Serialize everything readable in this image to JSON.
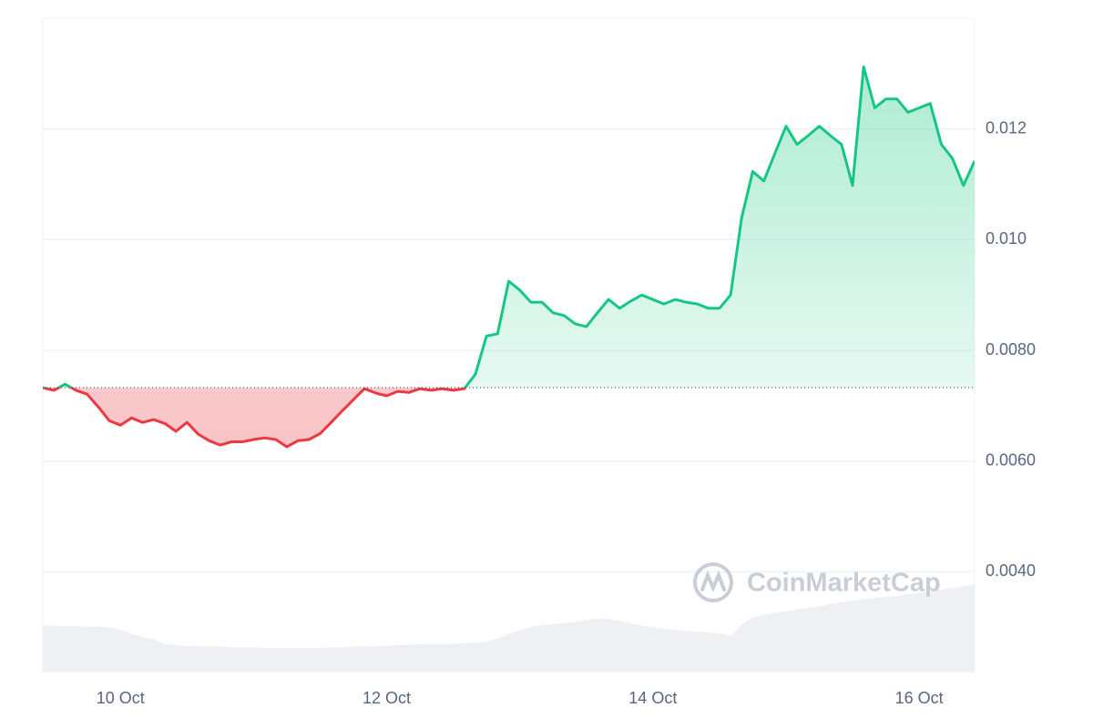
{
  "chart_data": {
    "type": "line",
    "watermark": "CoinMarketCap",
    "categories": [
      null,
      null,
      null,
      null,
      null,
      null,
      null,
      "10 Oct",
      null,
      null,
      null,
      null,
      null,
      null,
      null,
      null,
      null,
      null,
      null,
      null,
      null,
      null,
      null,
      null,
      null,
      null,
      null,
      null,
      null,
      null,
      null,
      "12 Oct",
      null,
      null,
      null,
      null,
      null,
      null,
      null,
      null,
      null,
      null,
      null,
      null,
      null,
      null,
      null,
      null,
      null,
      null,
      null,
      null,
      null,
      null,
      null,
      "14 Oct",
      null,
      null,
      null,
      null,
      null,
      null,
      null,
      null,
      null,
      null,
      null,
      null,
      null,
      null,
      null,
      null,
      null,
      null,
      null,
      null,
      null,
      null,
      null,
      "16 Oct",
      null,
      null,
      null,
      null,
      null
    ],
    "series": [
      {
        "values": [
          0.00733,
          0.00728,
          0.00739,
          0.00728,
          0.00721,
          0.00698,
          0.00673,
          0.00665,
          0.00678,
          0.0067,
          0.00675,
          0.00668,
          0.00654,
          0.0067,
          0.00649,
          0.00637,
          0.00629,
          0.00635,
          0.00635,
          0.00639,
          0.00642,
          0.00639,
          0.00626,
          0.00637,
          0.00639,
          0.0065,
          0.0067,
          0.00691,
          0.00711,
          0.00731,
          0.00723,
          0.00718,
          0.00726,
          0.00724,
          0.00731,
          0.00728,
          0.00731,
          0.00728,
          0.00731,
          0.00757,
          0.00826,
          0.0083,
          0.00925,
          0.00909,
          0.00887,
          0.00887,
          0.00868,
          0.00863,
          0.00848,
          0.00843,
          0.00868,
          0.00892,
          0.00876,
          0.00889,
          0.009,
          0.00892,
          0.00884,
          0.00892,
          0.00887,
          0.00884,
          0.00876,
          0.00876,
          0.009,
          0.0104,
          0.01123,
          0.01106,
          0.01156,
          0.01205,
          0.01172,
          0.01188,
          0.01205,
          0.01188,
          0.01172,
          0.01098,
          0.01312,
          0.01238,
          0.01254,
          0.01254,
          0.0123,
          0.01238,
          0.01246,
          0.01172,
          0.01147,
          0.01098,
          0.01142
        ]
      },
      {
        "color": "#eef0f4",
        "values": [
          0.00303,
          0.00303,
          0.00302,
          0.00302,
          0.00301,
          0.00301,
          0.003,
          0.00296,
          0.00288,
          0.00283,
          0.00278,
          0.0027,
          0.00268,
          0.00266,
          0.00266,
          0.00265,
          0.00265,
          0.00264,
          0.00264,
          0.00264,
          0.00263,
          0.00263,
          0.00263,
          0.00263,
          0.00263,
          0.00263,
          0.00264,
          0.00264,
          0.00265,
          0.00265,
          0.00266,
          0.00266,
          0.00268,
          0.00269,
          0.0027,
          0.0027,
          0.0027,
          0.0027,
          0.00271,
          0.00272,
          0.00274,
          0.0028,
          0.00288,
          0.00295,
          0.003,
          0.00304,
          0.00306,
          0.00308,
          0.0031,
          0.00313,
          0.00316,
          0.00315,
          0.00312,
          0.00307,
          0.00303,
          0.003,
          0.00297,
          0.00295,
          0.00293,
          0.00292,
          0.00291,
          0.00289,
          0.00285,
          0.00305,
          0.00318,
          0.00322,
          0.00326,
          0.00329,
          0.00332,
          0.00335,
          0.00338,
          0.00342,
          0.00345,
          0.00348,
          0.00351,
          0.00353,
          0.00355,
          0.00357,
          0.0036,
          0.00362,
          0.00365,
          0.00368,
          0.00371,
          0.00374,
          0.00377
        ]
      }
    ],
    "up_color": "#16c784",
    "down_color": "#ea3943",
    "baseline": 0.00733,
    "ylim": [
      0.0022,
      0.014
    ],
    "yticks": [
      {
        "value": 0.004,
        "label": "0.0040"
      },
      {
        "value": 0.006,
        "label": "0.0060"
      },
      {
        "value": 0.008,
        "label": "0.0080"
      },
      {
        "value": 0.01,
        "label": "0.010"
      },
      0.012
    ],
    "grid": true
  }
}
